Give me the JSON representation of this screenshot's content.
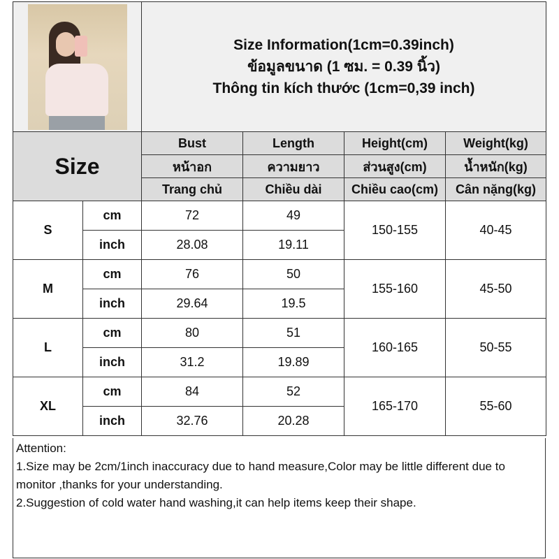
{
  "title": {
    "line1": "Size Information(1cm=0.39inch)",
    "line2": "ข้อมูลขนาด (1 ซม. = 0.39 นิ้ว)",
    "line3": "Thông tin kích thước (1cm=0,39 inch)"
  },
  "size_label": "Size",
  "columns": [
    {
      "en": "Bust",
      "th": "หน้าอก",
      "vi": "Trang chủ"
    },
    {
      "en": "Length",
      "th": "ความยาว",
      "vi": "Chiều dài"
    },
    {
      "en": "Height(cm)",
      "th": "ส่วนสูง(cm)",
      "vi": "Chiều cao(cm)"
    },
    {
      "en": "Weight(kg)",
      "th": "น้ำหนัก(kg)",
      "vi": "Cân nặng(kg)"
    }
  ],
  "units": {
    "cm": "cm",
    "inch": "inch"
  },
  "rows": [
    {
      "size": "S",
      "bust_cm": "72",
      "length_cm": "49",
      "bust_in": "28.08",
      "length_in": "19.11",
      "height": "150-155",
      "weight": "40-45"
    },
    {
      "size": "M",
      "bust_cm": "76",
      "length_cm": "50",
      "bust_in": "29.64",
      "length_in": "19.5",
      "height": "155-160",
      "weight": "45-50"
    },
    {
      "size": "L",
      "bust_cm": "80",
      "length_cm": "51",
      "bust_in": "31.2",
      "length_in": "19.89",
      "height": "160-165",
      "weight": "50-55"
    },
    {
      "size": "XL",
      "bust_cm": "84",
      "length_cm": "52",
      "bust_in": "32.76",
      "length_in": "20.28",
      "height": "165-170",
      "weight": "55-60"
    }
  ],
  "attention": {
    "heading": "Attention:",
    "notes": [
      "1.Size may be 2cm/1inch inaccuracy due to hand measure,Color may be little different due to monitor ,thanks for your understanding.",
      "2.Suggestion of cold water hand washing,it can help items keep their shape."
    ]
  }
}
